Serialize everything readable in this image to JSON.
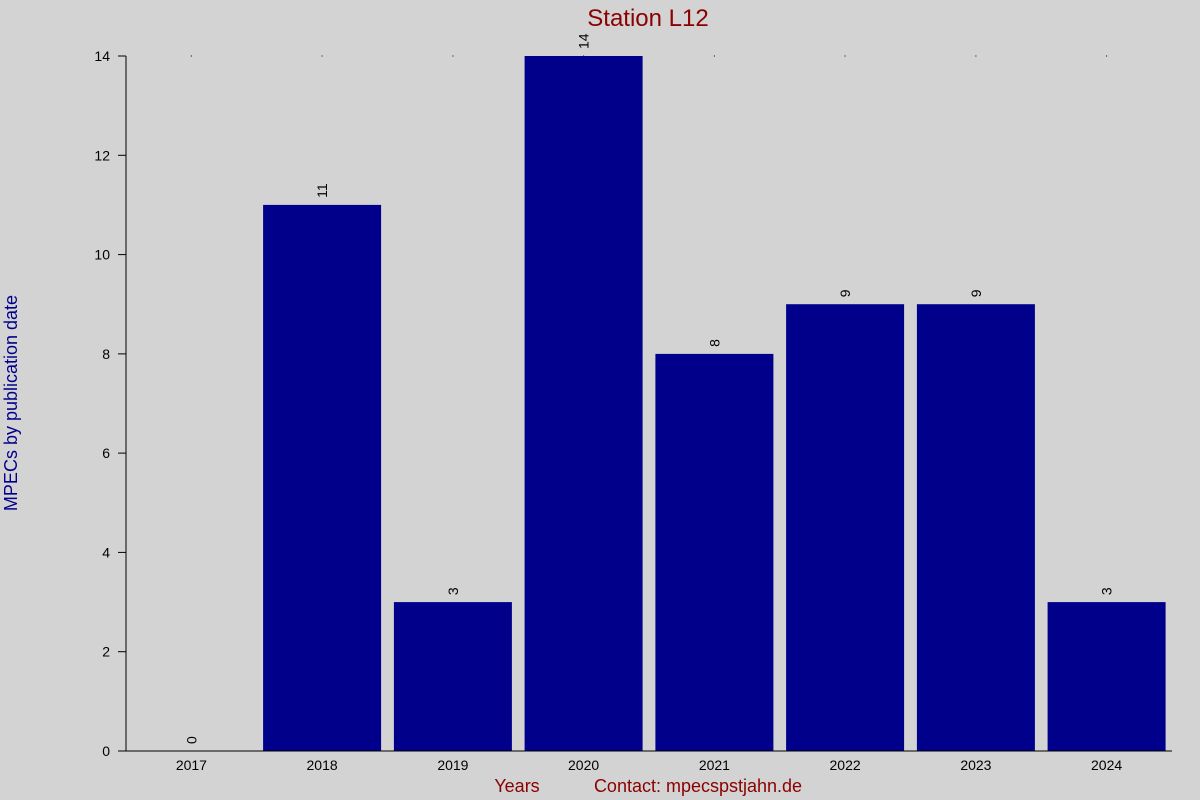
{
  "chart_data": {
    "type": "bar",
    "title": "Station L12",
    "xlabel": "Years",
    "contact": "Contact: mpecspstjahn.de",
    "ylabel": "MPECs by publication date",
    "categories": [
      "2017",
      "2018",
      "2019",
      "2020",
      "2021",
      "2022",
      "2023",
      "2024"
    ],
    "values": [
      0,
      11,
      3,
      14,
      8,
      9,
      9,
      3
    ],
    "ylim": [
      0,
      14
    ],
    "yticks": [
      0,
      2,
      4,
      6,
      8,
      10,
      12,
      14
    ],
    "grid": false,
    "legend": "none",
    "colors": {
      "bar": "#00008b",
      "title": "#8b0000",
      "xlabel": "#8b0000",
      "ylabel": "#00008b",
      "background": "#d3d3d3"
    }
  }
}
